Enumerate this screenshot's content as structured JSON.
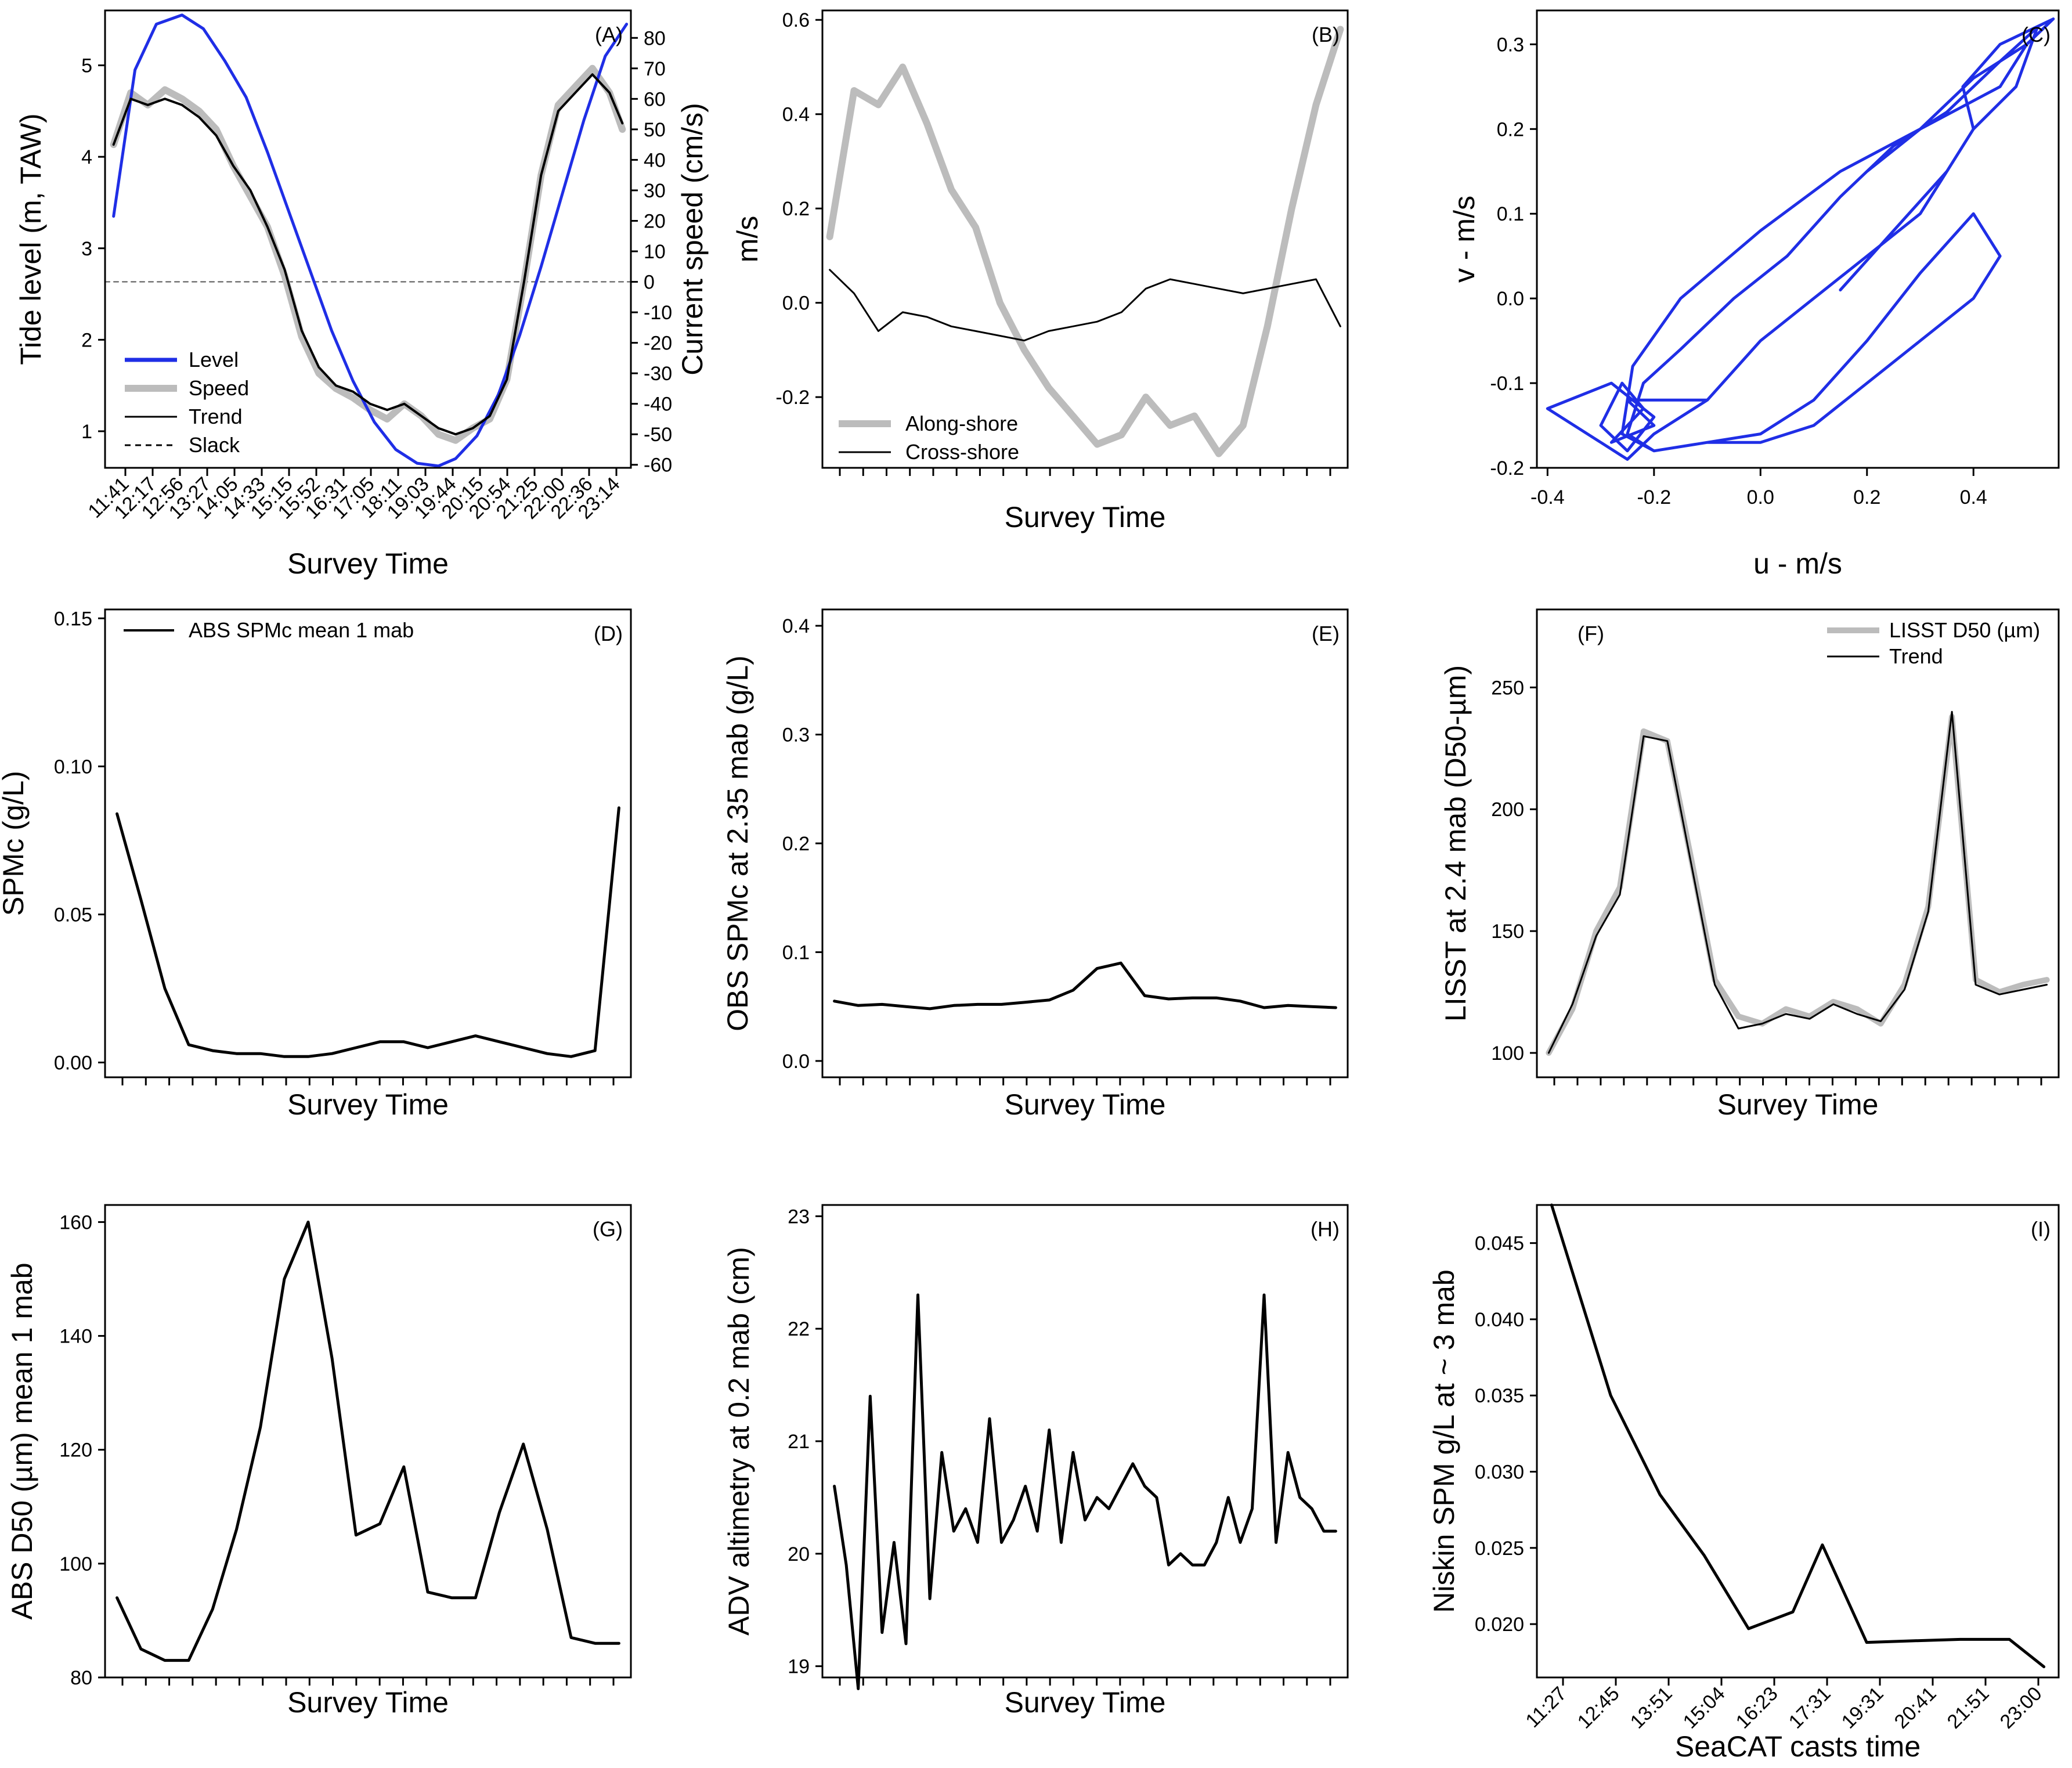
{
  "chart_data": [
    {
      "id": "A",
      "type": "line",
      "panel_label": "(A)",
      "xlabel": "Survey Time",
      "ylabel": "Tide level (m, TAW)",
      "y2label": "Current speed (cm/s)",
      "ylim": [
        0.6,
        5.6
      ],
      "yticks": [
        1,
        2,
        3,
        4,
        5
      ],
      "y2lim": [
        -61,
        89
      ],
      "y2ticks": [
        -60,
        -50,
        -40,
        -30,
        -20,
        -10,
        0,
        10,
        20,
        30,
        40,
        50,
        60,
        70,
        80
      ],
      "xlim": [
        11.5,
        23.8
      ],
      "xticklabels": [
        "11:41",
        "12:17",
        "12:56",
        "13:27",
        "14:05",
        "14:33",
        "15:15",
        "15:52",
        "16:31",
        "17:05",
        "18:11",
        "19:03",
        "19:44",
        "20:15",
        "20:54",
        "21:25",
        "22:00",
        "22:36",
        "23:14"
      ],
      "legend": [
        "Level",
        "Speed",
        "Trend",
        "Slack"
      ],
      "colors": {
        "level": "#1f2ee6",
        "speed": "#bcbcbc",
        "trend": "#000000",
        "slack": "#555555"
      },
      "series": [
        {
          "name": "Level",
          "axis": "left",
          "x": [
            11.7,
            12.2,
            12.7,
            13.3,
            13.8,
            14.3,
            14.8,
            15.3,
            15.8,
            16.3,
            16.8,
            17.3,
            17.8,
            18.3,
            18.8,
            19.3,
            19.7,
            20.2,
            20.7,
            21.2,
            21.7,
            22.2,
            22.7,
            23.2,
            23.7
          ],
          "y": [
            3.35,
            4.95,
            5.45,
            5.55,
            5.4,
            5.05,
            4.65,
            4.05,
            3.4,
            2.75,
            2.1,
            1.55,
            1.1,
            0.8,
            0.65,
            0.62,
            0.7,
            0.95,
            1.4,
            2.05,
            2.8,
            3.6,
            4.4,
            5.1,
            5.45
          ]
        },
        {
          "name": "Speed",
          "axis": "right",
          "x": [
            11.7,
            12.1,
            12.5,
            12.9,
            13.3,
            13.7,
            14.1,
            14.5,
            14.9,
            15.3,
            15.7,
            16.1,
            16.5,
            16.9,
            17.3,
            17.7,
            18.1,
            18.5,
            18.9,
            19.3,
            19.7,
            20.1,
            20.5,
            20.9,
            21.3,
            21.7,
            22.1,
            22.5,
            22.9,
            23.3,
            23.6
          ],
          "y": [
            45,
            62,
            58,
            63,
            60,
            56,
            50,
            38,
            28,
            18,
            2,
            -18,
            -30,
            -35,
            -38,
            -42,
            -45,
            -40,
            -44,
            -50,
            -52,
            -48,
            -45,
            -32,
            0,
            35,
            58,
            64,
            70,
            62,
            50
          ]
        },
        {
          "name": "Trend",
          "axis": "right",
          "x": [
            11.7,
            12.1,
            12.5,
            12.9,
            13.3,
            13.7,
            14.1,
            14.5,
            14.9,
            15.3,
            15.7,
            16.1,
            16.5,
            16.9,
            17.3,
            17.7,
            18.1,
            18.5,
            18.9,
            19.3,
            19.7,
            20.1,
            20.5,
            20.9,
            21.3,
            21.7,
            22.1,
            22.5,
            22.9,
            23.3,
            23.6
          ],
          "y": [
            45,
            60,
            58,
            60,
            58,
            54,
            48,
            38,
            30,
            18,
            4,
            -16,
            -28,
            -34,
            -36,
            -40,
            -42,
            -40,
            -44,
            -48,
            -50,
            -48,
            -44,
            -32,
            0,
            35,
            56,
            62,
            68,
            62,
            52
          ]
        },
        {
          "name": "Slack",
          "axis": "right",
          "x": [
            11.5,
            23.8
          ],
          "y": [
            0,
            0
          ]
        }
      ]
    },
    {
      "id": "B",
      "type": "line",
      "panel_label": "(B)",
      "xlabel": "Survey Time",
      "ylabel": "m/s",
      "ylim": [
        -0.35,
        0.62
      ],
      "yticks": [
        -0.2,
        0.0,
        0.2,
        0.4,
        0.6
      ],
      "yticklabels": [
        "-0.2",
        "0.0",
        "0.2",
        "0.4",
        "0.6"
      ],
      "xlim": [
        -0.3,
        21.3
      ],
      "legend": [
        "Along-shore",
        "Cross-shore"
      ],
      "series": [
        {
          "name": "Along-shore",
          "x": [
            0,
            1,
            2,
            3,
            4,
            5,
            6,
            7,
            8,
            9,
            10,
            11,
            12,
            13,
            14,
            15,
            16,
            17,
            18,
            19,
            20,
            21
          ],
          "y": [
            0.14,
            0.45,
            0.42,
            0.5,
            0.38,
            0.24,
            0.16,
            0.0,
            -0.1,
            -0.18,
            -0.24,
            -0.3,
            -0.28,
            -0.2,
            -0.26,
            -0.24,
            -0.32,
            -0.26,
            -0.05,
            0.2,
            0.42,
            0.58
          ]
        },
        {
          "name": "Cross-shore",
          "x": [
            0,
            1,
            2,
            3,
            4,
            5,
            6,
            7,
            8,
            9,
            10,
            11,
            12,
            13,
            14,
            15,
            16,
            17,
            18,
            19,
            20,
            21
          ],
          "y": [
            0.07,
            0.02,
            -0.06,
            -0.02,
            -0.03,
            -0.05,
            -0.06,
            -0.07,
            -0.08,
            -0.06,
            -0.05,
            -0.04,
            -0.02,
            0.03,
            0.05,
            0.04,
            0.03,
            0.02,
            0.03,
            0.04,
            0.05,
            -0.05
          ]
        }
      ]
    },
    {
      "id": "C",
      "type": "line",
      "panel_label": "(C)",
      "xlabel": "u - m/s",
      "ylabel": "v - m/s",
      "xlim": [
        -0.42,
        0.56
      ],
      "ylim": [
        -0.2,
        0.34
      ],
      "xticks": [
        -0.4,
        -0.2,
        0.0,
        0.2,
        0.4
      ],
      "xticklabels": [
        "-0.4",
        "-0.2",
        "0.0",
        "0.2",
        "0.4"
      ],
      "yticks": [
        -0.2,
        -0.1,
        0.0,
        0.1,
        0.2,
        0.3
      ],
      "yticklabels": [
        "-0.2",
        "-0.1",
        "0.0",
        "0.1",
        "0.2",
        "0.3"
      ],
      "series": [
        {
          "name": "u-v",
          "x": [
            -0.1,
            -0.25,
            -0.2,
            -0.28,
            -0.22,
            -0.26,
            -0.3,
            -0.25,
            -0.2,
            -0.28,
            -0.4,
            -0.3,
            -0.25,
            -0.2,
            -0.1,
            0.0,
            0.1,
            0.2,
            0.3,
            0.35,
            0.4,
            0.48,
            0.52,
            0.45,
            0.35,
            0.25,
            0.15,
            0.05,
            -0.05,
            -0.15,
            -0.22,
            -0.25,
            -0.2,
            -0.1,
            0.0,
            0.1,
            0.2,
            0.3,
            0.4,
            0.45,
            0.4,
            0.3,
            0.2,
            0.1,
            0.0,
            -0.1,
            -0.2,
            -0.26,
            -0.24,
            -0.15,
            0.0,
            0.15,
            0.3,
            0.45,
            0.5,
            0.45,
            0.35,
            0.25,
            0.2,
            0.3,
            0.4,
            0.5,
            0.55,
            0.45,
            0.38,
            0.4,
            0.35,
            0.25,
            0.15
          ],
          "y": [
            -0.12,
            -0.12,
            -0.15,
            -0.17,
            -0.13,
            -0.1,
            -0.15,
            -0.18,
            -0.14,
            -0.1,
            -0.13,
            -0.17,
            -0.19,
            -0.16,
            -0.12,
            -0.05,
            0.0,
            0.05,
            0.1,
            0.15,
            0.2,
            0.25,
            0.32,
            0.28,
            0.22,
            0.18,
            0.12,
            0.05,
            0.0,
            -0.06,
            -0.1,
            -0.16,
            -0.18,
            -0.17,
            -0.16,
            -0.12,
            -0.05,
            0.03,
            0.1,
            0.05,
            0.0,
            -0.05,
            -0.1,
            -0.15,
            -0.17,
            -0.17,
            -0.18,
            -0.16,
            -0.08,
            0.0,
            0.08,
            0.15,
            0.2,
            0.25,
            0.3,
            0.28,
            0.22,
            0.18,
            0.15,
            0.2,
            0.26,
            0.3,
            0.33,
            0.3,
            0.25,
            0.2,
            0.15,
            0.08,
            0.01
          ]
        }
      ]
    },
    {
      "id": "D",
      "type": "line",
      "panel_label": "(D)",
      "xlabel": "Survey Time",
      "ylabel": "SPMc (g/L)",
      "ylim": [
        -0.005,
        0.153
      ],
      "yticks": [
        0.0,
        0.05,
        0.1,
        0.15
      ],
      "yticklabels": [
        "0.00",
        "0.05",
        "0.10",
        "0.15"
      ],
      "xlim": [
        -0.5,
        21.5
      ],
      "legend": [
        "ABS SPMc mean 1 mab"
      ],
      "series": [
        {
          "name": "ABS SPMc mean 1 mab",
          "x": [
            0,
            1,
            2,
            3,
            4,
            5,
            6,
            7,
            8,
            9,
            10,
            11,
            12,
            13,
            14,
            15,
            16,
            17,
            18,
            19,
            20,
            21
          ],
          "y": [
            0.084,
            0.055,
            0.025,
            0.006,
            0.004,
            0.003,
            0.003,
            0.002,
            0.002,
            0.003,
            0.005,
            0.007,
            0.007,
            0.005,
            0.007,
            0.009,
            0.007,
            0.005,
            0.003,
            0.002,
            0.004,
            0.086
          ]
        }
      ]
    },
    {
      "id": "E",
      "type": "line",
      "panel_label": "(E)",
      "xlabel": "Survey Time",
      "ylabel": "OBS SPMc at 2.35 mab (g/L)",
      "ylim": [
        -0.015,
        0.415
      ],
      "yticks": [
        0.0,
        0.1,
        0.2,
        0.3,
        0.4
      ],
      "yticklabels": [
        "0.0",
        "0.1",
        "0.2",
        "0.3",
        "0.4"
      ],
      "xlim": [
        -0.5,
        21.5
      ],
      "series": [
        {
          "name": "OBS SPMc at 2.35 mab",
          "x": [
            0,
            1,
            2,
            3,
            4,
            5,
            6,
            7,
            8,
            9,
            10,
            11,
            12,
            13,
            14,
            15,
            16,
            17,
            18,
            19,
            20,
            21
          ],
          "y": [
            0.055,
            0.051,
            0.052,
            0.05,
            0.048,
            0.051,
            0.052,
            0.052,
            0.054,
            0.056,
            0.065,
            0.085,
            0.09,
            0.06,
            0.057,
            0.058,
            0.058,
            0.055,
            0.049,
            0.051,
            0.05,
            0.049
          ]
        }
      ]
    },
    {
      "id": "F",
      "type": "line",
      "panel_label": "(F)",
      "xlabel": "Survey Time",
      "ylabel": "LISST at 2.4 mab (D50-µm)",
      "ylim": [
        90,
        282
      ],
      "yticks": [
        100,
        150,
        200,
        250
      ],
      "xlim": [
        -0.5,
        21.5
      ],
      "legend": [
        "LISST D50 (µm)",
        "Trend"
      ],
      "series": [
        {
          "name": "LISST D50 (µm)",
          "x": [
            0,
            1,
            2,
            3,
            4,
            5,
            6,
            7,
            8,
            9,
            10,
            11,
            12,
            13,
            14,
            15,
            16,
            17,
            18,
            19,
            20,
            21
          ],
          "y": [
            100,
            118,
            150,
            168,
            232,
            228,
            180,
            130,
            115,
            112,
            118,
            115,
            121,
            118,
            112,
            128,
            160,
            238,
            130,
            125,
            128,
            130
          ]
        },
        {
          "name": "Trend",
          "x": [
            0,
            1,
            2,
            3,
            4,
            5,
            6,
            7,
            8,
            9,
            10,
            11,
            12,
            13,
            14,
            15,
            16,
            17,
            18,
            19,
            20,
            21
          ],
          "y": [
            100,
            120,
            148,
            165,
            230,
            228,
            178,
            128,
            110,
            112,
            116,
            114,
            120,
            116,
            113,
            126,
            158,
            240,
            128,
            124,
            126,
            128
          ]
        }
      ]
    },
    {
      "id": "G",
      "type": "line",
      "panel_label": "(G)",
      "xlabel": "Survey Time",
      "ylabel": "ABS D50 (µm) mean 1 mab",
      "ylim": [
        80,
        163
      ],
      "yticks": [
        80,
        100,
        120,
        140,
        160
      ],
      "xlim": [
        -0.5,
        21.5
      ],
      "series": [
        {
          "name": "ABS D50 mean 1 mab",
          "x": [
            0,
            1,
            2,
            3,
            4,
            5,
            6,
            7,
            8,
            9,
            10,
            11,
            12,
            13,
            14,
            15,
            16,
            17,
            18,
            19,
            20,
            21
          ],
          "y": [
            94,
            85,
            83,
            83,
            92,
            106,
            124,
            150,
            160,
            136,
            105,
            107,
            117,
            95,
            94,
            94,
            109,
            121,
            106,
            87,
            86,
            86
          ]
        }
      ]
    },
    {
      "id": "H",
      "type": "line",
      "panel_label": "(H)",
      "xlabel": "Survey Time",
      "ylabel": "ADV altimetry at 0.2 mab (cm)",
      "ylim": [
        18.9,
        23.1
      ],
      "yticks": [
        19,
        20,
        21,
        22,
        23
      ],
      "xlim": [
        -0.5,
        21.5
      ],
      "series": [
        {
          "name": "ADV altimetry at 0.2 mab",
          "x": [
            0,
            0.5,
            1,
            1.5,
            2,
            2.5,
            3,
            3.5,
            4,
            4.5,
            5,
            5.5,
            6,
            6.5,
            7,
            7.5,
            8,
            8.5,
            9,
            9.5,
            10,
            10.5,
            11,
            11.5,
            12,
            12.5,
            13,
            13.5,
            14,
            14.5,
            15,
            15.5,
            16,
            16.5,
            17,
            17.5,
            18,
            18.5,
            19,
            19.5,
            20,
            20.5,
            21
          ],
          "y": [
            20.6,
            19.9,
            18.8,
            21.4,
            19.3,
            20.1,
            19.2,
            22.3,
            19.6,
            20.9,
            20.2,
            20.4,
            20.1,
            21.2,
            20.1,
            20.3,
            20.6,
            20.2,
            21.1,
            20.1,
            20.9,
            20.3,
            20.5,
            20.4,
            20.6,
            20.8,
            20.6,
            20.5,
            19.9,
            20.0,
            19.9,
            19.9,
            20.1,
            20.5,
            20.1,
            20.4,
            22.3,
            20.1,
            20.9,
            20.5,
            20.4,
            20.2,
            20.2
          ]
        }
      ]
    },
    {
      "id": "I",
      "type": "line",
      "panel_label": "(I)",
      "xlabel": "SeaCAT casts time",
      "ylabel": "Niskin SPM g/L at ~ 3 mab",
      "ylim": [
        0.0165,
        0.0475
      ],
      "yticks": [
        0.02,
        0.025,
        0.03,
        0.035,
        0.04,
        0.045
      ],
      "yticklabels": [
        "0.020",
        "0.025",
        "0.030",
        "0.035",
        "0.040",
        "0.045"
      ],
      "xlim": [
        -0.3,
        10.3
      ],
      "xticklabels": [
        "11:27",
        "12:45",
        "13:51",
        "15:04",
        "16:23",
        "17:31",
        "19:31",
        "20:41",
        "21:51",
        "23:00"
      ],
      "series": [
        {
          "name": "Niskin SPM",
          "x": [
            0,
            1.2,
            2.2,
            3.1,
            4.0,
            4.9,
            5.5,
            6.4,
            7.3,
            8.3,
            9.3,
            10
          ],
          "y": [
            0.0475,
            0.035,
            0.0285,
            0.0245,
            0.0197,
            0.0208,
            0.0252,
            0.0188,
            0.0189,
            0.019,
            0.019,
            0.0172
          ]
        }
      ]
    }
  ]
}
